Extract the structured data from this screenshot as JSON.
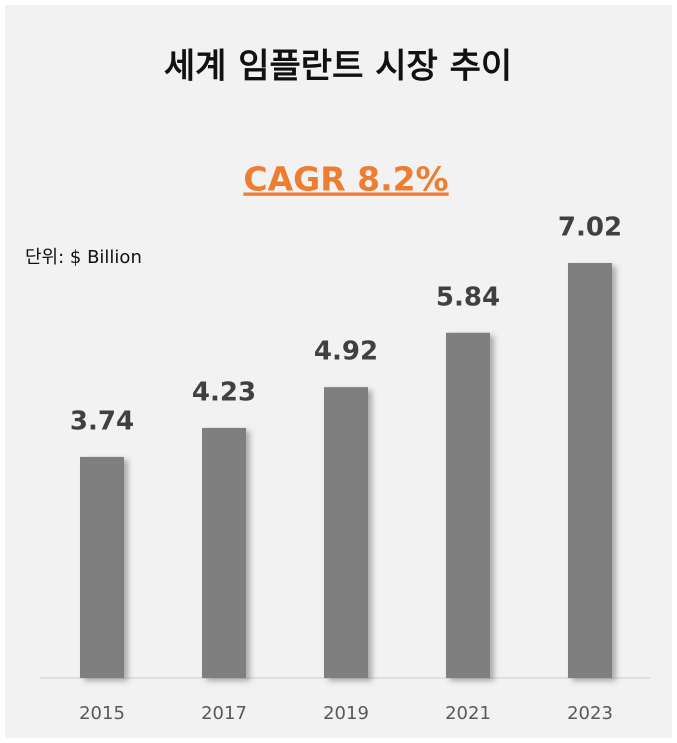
{
  "chart_data": {
    "type": "bar",
    "title": "세계 임플란트 시장 추이",
    "subtitle": "CAGR 8.2%",
    "unit_label": "단위: $ Billion",
    "categories": [
      "2015",
      "2017",
      "2019",
      "2021",
      "2023"
    ],
    "values": [
      3.74,
      4.23,
      4.92,
      5.84,
      7.02
    ],
    "color": "#7f7f7f",
    "subtitle_color": "#ed7d31"
  }
}
